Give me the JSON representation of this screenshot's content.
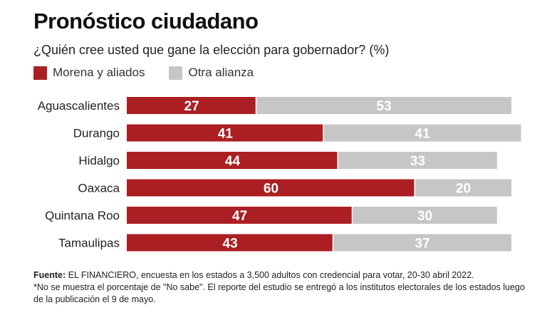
{
  "title": "Pronóstico ciudadano",
  "subtitle": "¿Quién cree usted que gane la elección para gobernador? (%)",
  "legend": [
    {
      "label": "Morena y aliados",
      "color": "#ab1f23"
    },
    {
      "label": "Otra alianza",
      "color": "#c6c6c6"
    }
  ],
  "footer": {
    "source_label": "Fuente:",
    "source_text": " EL FINANCIERO, encuesta en los estados a 3,500 adultos con credencial para votar, 20-30 abril 2022.",
    "note": "*No se muestra el porcentaje de \"No sabe\". El reporte del estudio se entregó a los institutos electorales de los estados luego de la publicación el 9 de mayo."
  },
  "chart_data": {
    "type": "bar",
    "orientation": "horizontal",
    "stacked": true,
    "unit": "%",
    "categories": [
      "Aguascalientes",
      "Durango",
      "Hidalgo",
      "Oaxaca",
      "Quintana Roo",
      "Tamaulipas"
    ],
    "series": [
      {
        "name": "Morena y aliados",
        "color": "#ab1f23",
        "values": [
          27,
          41,
          44,
          60,
          47,
          43
        ]
      },
      {
        "name": "Otra alianza",
        "color": "#c6c6c6",
        "values": [
          53,
          41,
          33,
          20,
          30,
          37
        ]
      }
    ],
    "xlim": [
      0,
      100
    ],
    "grid": false,
    "legend_position": "top-left"
  }
}
